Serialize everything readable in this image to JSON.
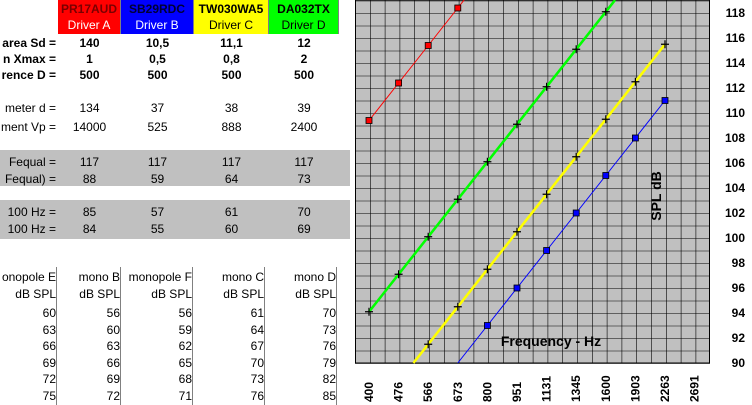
{
  "sheet": {
    "drivers": [
      {
        "model": "PR17AUD",
        "label": "Driver A",
        "color": "#ff0000",
        "text_color": "#ffffff"
      },
      {
        "model": "SB29RDC",
        "label": "Driver B",
        "color": "#0000ff",
        "text_color": "#ffffff"
      },
      {
        "model": "TW030WA5",
        "label": "Driver C",
        "color": "#ffff00",
        "text_color": "#000000"
      },
      {
        "model": "DA032TX",
        "label": "Driver D",
        "color": "#00ff00",
        "text_color": "#000000"
      }
    ],
    "rows": [
      {
        "label": "area Sd =",
        "values": [
          "140",
          "10,5",
          "11,1",
          "12"
        ],
        "bold": true,
        "gray": false
      },
      {
        "label": "n Xmax =",
        "values": [
          "1",
          "0,5",
          "0,8",
          "2"
        ],
        "bold": true,
        "gray": false
      },
      {
        "label": "rence D =",
        "values": [
          "500",
          "500",
          "500",
          "500"
        ],
        "bold": true,
        "gray": false
      },
      {
        "label": "meter d =",
        "values": [
          "134",
          "37",
          "38",
          "39"
        ],
        "bold": false,
        "gray": false
      },
      {
        "label": "ment Vp =",
        "values": [
          "14000",
          "525",
          "888",
          "2400"
        ],
        "bold": false,
        "gray": false
      },
      {
        "label": "Fequal =",
        "values": [
          "117",
          "117",
          "117",
          "117"
        ],
        "bold": false,
        "gray": true
      },
      {
        "label": "Fequal) =",
        "values": [
          "88",
          "59",
          "64",
          "73"
        ],
        "bold": false,
        "gray": true
      },
      {
        "label": "100 Hz =",
        "values": [
          "85",
          "57",
          "61",
          "70"
        ],
        "bold": false,
        "gray": true
      },
      {
        "label": "100 Hz =",
        "values": [
          "84",
          "55",
          "60",
          "69"
        ],
        "bold": false,
        "gray": true
      }
    ],
    "table_headers": [
      {
        "name": "onopole E",
        "unit": "dB SPL"
      },
      {
        "name": "mono B",
        "unit": "dB SPL"
      },
      {
        "name": "monopole F",
        "unit": "dB SPL"
      },
      {
        "name": "mono C",
        "unit": "dB SPL"
      },
      {
        "name": "mono D",
        "unit": "dB SPL"
      }
    ],
    "table_rows": [
      [
        "60",
        "56",
        "56",
        "61",
        "70"
      ],
      [
        "63",
        "60",
        "59",
        "64",
        "73"
      ],
      [
        "66",
        "63",
        "62",
        "67",
        "76"
      ],
      [
        "69",
        "66",
        "65",
        "70",
        "79"
      ],
      [
        "72",
        "69",
        "68",
        "73",
        "82"
      ],
      [
        "75",
        "72",
        "71",
        "76",
        "85"
      ]
    ]
  },
  "chart_data": {
    "type": "line",
    "xlabel": "Frequency - Hz",
    "ylabel": "SPL  dB",
    "x": [
      "400",
      "476",
      "566",
      "673",
      "800",
      "951",
      "1131",
      "1345",
      "1600",
      "1903",
      "2263",
      "2691"
    ],
    "ylim": [
      90,
      120
    ],
    "y_ticks": [
      "90",
      "92",
      "94",
      "96",
      "98",
      "100",
      "102",
      "104",
      "106",
      "108",
      "110",
      "112",
      "114",
      "116",
      "118"
    ],
    "grid": true,
    "background": "#c0c0c0",
    "series": [
      {
        "color": "#ff0000",
        "marker": "square",
        "values": [
          109.4,
          112.4,
          115.4,
          118.4,
          null,
          null,
          null,
          null,
          null,
          null,
          null,
          null
        ]
      },
      {
        "color": "#00ff00",
        "marker": "cross",
        "values": [
          94.1,
          97.1,
          100.1,
          103.1,
          106.1,
          109.1,
          112.1,
          115.1,
          118.1,
          null,
          null,
          null
        ]
      },
      {
        "color": "#ffff00",
        "marker": "cross",
        "values": [
          null,
          null,
          91.5,
          94.5,
          97.5,
          100.5,
          103.5,
          106.5,
          109.5,
          112.5,
          115.5,
          null
        ]
      },
      {
        "color": "#0000ff",
        "marker": "square",
        "values": [
          null,
          null,
          null,
          null,
          93.0,
          96.0,
          99.0,
          102.0,
          105.0,
          108.0,
          111.0,
          null
        ]
      }
    ]
  }
}
